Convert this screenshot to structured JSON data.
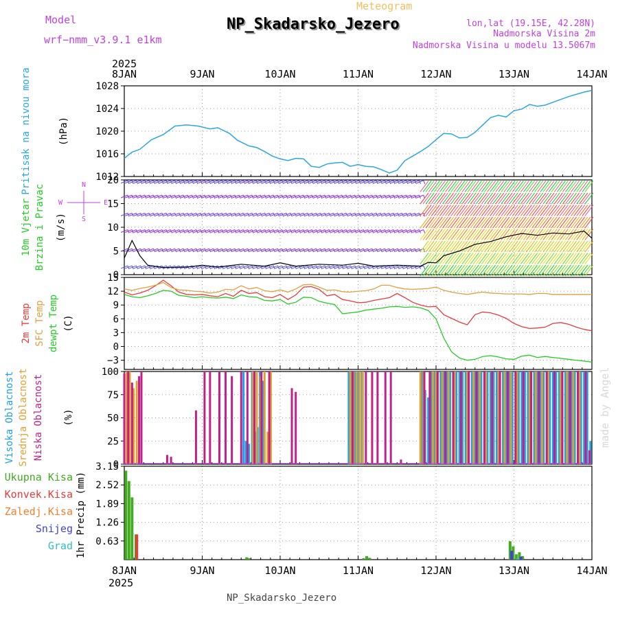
{
  "header": {
    "model_label": "Model",
    "model_name": "wrf−nmm_v3.9.1  e1km",
    "meteogram_label": "Meteogram",
    "station_title": "NP_Skadarsko_Jezero",
    "lonlat": "lon,lat (19.15E, 42.28N)",
    "elevation": "Nadmorska Visina 2m",
    "model_elevation": "Nadmorska Visina u modelu 13.5067m",
    "footer_station": "NP_Skadarsko_Jezero",
    "watermark": "made by Angel"
  },
  "time_axis": {
    "year": "2025",
    "ticks": [
      "8JAN",
      "9JAN",
      "10JAN",
      "11JAN",
      "12JAN",
      "13JAN",
      "14JAN"
    ]
  },
  "colors": {
    "pressure": "#2aa6e0",
    "t2m": "#e83a3a",
    "tsfc": "#e0a040",
    "dewpoint": "#22cc22",
    "wind_speed": "#000000",
    "cloud_high": "#20a0e8",
    "cloud_mid": "#e0a030",
    "cloud_low": "#c0208a",
    "precip_total": "#44aa22",
    "precip_conv": "#e83a3a",
    "precip_frozen": "#f08030",
    "precip_snow": "#4040e0",
    "precip_hail": "#30c0c0",
    "labels_purple": "#c040e0"
  },
  "chart_data": [
    {
      "type": "line",
      "panel": "pressure",
      "ylabel": "Pritisak na nivou mora",
      "unit": "(hPa)",
      "ylim": [
        1012,
        1028
      ],
      "yticks": [
        1012,
        1016,
        1020,
        1024,
        1028
      ],
      "x_days": [
        0,
        0.1,
        0.2,
        0.35,
        0.5,
        0.65,
        0.8,
        0.95,
        1.1,
        1.2,
        1.35,
        1.45,
        1.6,
        1.7,
        1.8,
        1.9,
        2.0,
        2.1,
        2.2,
        2.3,
        2.4,
        2.5,
        2.6,
        2.7,
        2.8,
        2.9,
        3.0,
        3.1,
        3.2,
        3.3,
        3.4,
        3.5,
        3.6,
        3.7,
        3.8,
        3.9,
        4.0,
        4.1,
        4.2,
        4.3,
        4.4,
        4.5,
        4.6,
        4.7,
        4.8,
        4.9,
        5.0,
        5.1,
        5.2,
        5.3,
        5.4,
        5.5,
        5.6,
        5.7,
        5.8,
        5.9,
        6.0
      ],
      "values": [
        1015.2,
        1016.3,
        1016.8,
        1018.5,
        1019.4,
        1020.9,
        1021.1,
        1020.9,
        1020.4,
        1020.6,
        1019.6,
        1018.4,
        1017.4,
        1017.1,
        1016.4,
        1015.6,
        1015.1,
        1014.8,
        1015.2,
        1015.1,
        1013.8,
        1013.6,
        1014.2,
        1014.4,
        1014.5,
        1013.8,
        1014.1,
        1013.8,
        1013.7,
        1013.2,
        1012.6,
        1013.1,
        1014.8,
        1015.6,
        1016.4,
        1017.3,
        1018.5,
        1019.6,
        1019.5,
        1018.8,
        1018.9,
        1019.8,
        1021.1,
        1022.4,
        1022.8,
        1022.5,
        1023.6,
        1023.9,
        1024.7,
        1024.4,
        1024.6,
        1025.1,
        1025.6,
        1026.1,
        1026.5,
        1026.9,
        1027.2
      ]
    },
    {
      "type": "line",
      "panel": "wind",
      "ylabel": "10m Vjetar",
      "ylabel2": "Brzina i Pravac",
      "unit": "(m/s)",
      "ylim": [
        0,
        20
      ],
      "yticks": [
        0,
        5,
        10,
        15,
        20
      ],
      "compass": {
        "n": "N",
        "s": "S",
        "e": "E",
        "w": "W"
      },
      "x_days": [
        0,
        0.1,
        0.2,
        0.3,
        0.5,
        0.8,
        1.0,
        1.2,
        1.5,
        1.8,
        2.0,
        2.2,
        2.5,
        2.8,
        3.0,
        3.2,
        3.5,
        3.8,
        3.9,
        4.0,
        4.1,
        4.3,
        4.5,
        4.7,
        4.9,
        5.1,
        5.3,
        5.5,
        5.7,
        5.9,
        6.0
      ],
      "values": [
        3.5,
        7.2,
        4.0,
        2.0,
        1.5,
        1.6,
        2.0,
        1.6,
        2.2,
        1.8,
        2.5,
        1.8,
        2.2,
        2.0,
        2.4,
        1.8,
        2.0,
        1.8,
        2.6,
        2.5,
        4.0,
        5.0,
        6.4,
        7.0,
        8.0,
        8.7,
        8.3,
        8.8,
        8.6,
        9.2,
        7.7
      ]
    },
    {
      "type": "line",
      "panel": "temperature",
      "ylabels": [
        "2m Temp",
        "SFC Temp",
        "dewpt Temp"
      ],
      "unit": "(C)",
      "ylim": [
        -5,
        15
      ],
      "yticks": [
        -3,
        0,
        3,
        6,
        9,
        12,
        15
      ],
      "x_days": [
        0,
        0.1,
        0.2,
        0.3,
        0.4,
        0.5,
        0.6,
        0.7,
        0.8,
        0.9,
        1.0,
        1.1,
        1.2,
        1.3,
        1.4,
        1.5,
        1.6,
        1.7,
        1.8,
        1.9,
        2.0,
        2.1,
        2.2,
        2.3,
        2.4,
        2.5,
        2.6,
        2.7,
        2.8,
        2.9,
        3.0,
        3.1,
        3.2,
        3.3,
        3.4,
        3.5,
        3.6,
        3.7,
        3.8,
        3.9,
        4.0,
        4.1,
        4.2,
        4.3,
        4.4,
        4.5,
        4.6,
        4.7,
        4.8,
        4.9,
        5.0,
        5.1,
        5.2,
        5.3,
        5.4,
        5.5,
        5.6,
        5.7,
        5.8,
        5.9,
        6.0
      ],
      "series": [
        {
          "name": "2m Temp",
          "key": "t2m",
          "values": [
            11.8,
            11.2,
            11.6,
            12.2,
            13.2,
            14.4,
            13.2,
            11.8,
            11.3,
            11.2,
            11.3,
            11.0,
            10.8,
            11.5,
            10.9,
            12.2,
            11.5,
            11.7,
            10.8,
            10.6,
            11.3,
            10.2,
            11.2,
            12.9,
            13.0,
            12.4,
            11.0,
            11.3,
            10.2,
            9.9,
            9.5,
            9.6,
            10.0,
            10.3,
            10.6,
            11.5,
            10.6,
            9.6,
            9.0,
            8.6,
            8.7,
            6.9,
            6.1,
            5.3,
            4.7,
            6.9,
            7.5,
            7.3,
            6.8,
            6.1,
            5.0,
            4.3,
            3.9,
            4.0,
            4.2,
            5.0,
            5.2,
            4.8,
            4.2,
            3.7,
            3.4
          ]
        },
        {
          "name": "SFC Temp",
          "key": "tsfc",
          "values": [
            12.5,
            12.2,
            12.6,
            12.9,
            13.3,
            13.9,
            12.8,
            12.3,
            12.2,
            12.0,
            11.9,
            11.6,
            11.8,
            12.4,
            12.3,
            13.2,
            12.5,
            12.8,
            12.1,
            11.9,
            12.3,
            11.8,
            12.5,
            13.4,
            13.5,
            12.9,
            12.2,
            12.3,
            11.9,
            11.8,
            12.0,
            12.1,
            12.5,
            13.3,
            13.3,
            12.8,
            12.5,
            12.4,
            12.5,
            12.6,
            12.9,
            12.2,
            11.8,
            11.5,
            11.3,
            11.6,
            11.8,
            11.6,
            11.5,
            11.4,
            11.4,
            11.4,
            11.3,
            11.5,
            11.5,
            11.3,
            11.3,
            11.3,
            11.3,
            11.3,
            11.3
          ]
        },
        {
          "name": "dewpt Temp",
          "key": "dewpoint",
          "values": [
            11.3,
            10.8,
            10.6,
            11.0,
            11.5,
            12.2,
            12.0,
            11.1,
            10.9,
            10.6,
            10.8,
            10.6,
            10.5,
            10.7,
            10.4,
            11.2,
            10.8,
            10.7,
            10.0,
            9.9,
            10.2,
            9.2,
            9.6,
            10.7,
            10.6,
            9.8,
            9.4,
            9.1,
            7.1,
            7.3,
            7.5,
            7.9,
            8.1,
            8.3,
            8.6,
            8.7,
            8.5,
            8.6,
            8.4,
            7.8,
            6.0,
            1.8,
            -1.2,
            -2.5,
            -3.0,
            -2.8,
            -2.2,
            -2.0,
            -2.3,
            -2.7,
            -2.8,
            -2.1,
            -1.9,
            -2.4,
            -2.2,
            -2.4,
            -2.6,
            -2.8,
            -3.0,
            -3.2,
            -3.4
          ]
        }
      ]
    },
    {
      "type": "bar",
      "panel": "clouds",
      "ylabels": [
        "Visoka Oblacnost",
        "Srednja Oblacnost",
        "Niska Oblacnost"
      ],
      "unit": "(%)",
      "ylim": [
        0,
        100
      ],
      "yticks": [
        0,
        25,
        50,
        75,
        100
      ],
      "series": [
        {
          "name": "Visoka Oblacnost",
          "key": "cloud_high",
          "x_days": [
            1.53,
            1.56,
            1.6,
            1.64,
            1.68,
            1.71,
            1.74,
            1.78,
            2.88,
            2.92,
            2.96,
            3.0,
            3.05,
            3.82,
            3.86,
            3.9,
            3.94,
            3.98,
            4.02,
            4.06,
            4.1,
            4.14,
            4.18,
            4.22,
            4.26,
            4.3,
            4.34,
            4.38,
            4.42,
            4.46,
            4.5,
            4.54,
            4.58,
            4.62,
            4.66,
            4.7,
            4.74,
            4.78,
            4.82,
            4.86,
            4.9,
            4.94,
            4.98,
            5.02,
            5.06,
            5.1,
            5.14,
            5.18,
            5.22,
            5.26,
            5.3,
            5.34,
            5.38,
            5.42,
            5.46,
            5.5,
            5.54,
            5.58,
            5.62,
            5.66,
            5.7,
            5.74,
            5.78,
            5.82,
            5.86,
            5.9,
            5.94,
            5.98
          ],
          "values": [
            100,
            25,
            22,
            100,
            35,
            40,
            100,
            90,
            100,
            100,
            100,
            100,
            100,
            100,
            80,
            72,
            100,
            100,
            100,
            100,
            100,
            100,
            100,
            100,
            100,
            100,
            100,
            100,
            100,
            100,
            100,
            100,
            100,
            100,
            100,
            100,
            100,
            100,
            100,
            100,
            100,
            100,
            100,
            100,
            100,
            100,
            100,
            100,
            100,
            100,
            100,
            100,
            100,
            100,
            100,
            100,
            100,
            100,
            100,
            100,
            100,
            100,
            100,
            100,
            100,
            100,
            100,
            25
          ]
        },
        {
          "name": "Srednja Oblacnost",
          "key": "cloud_mid",
          "x_days": [
            0.03,
            0.07,
            0.12,
            0.16,
            1.65,
            1.7,
            1.75,
            1.8,
            1.84,
            1.88,
            2.9,
            2.94,
            2.98,
            3.02,
            3.06,
            3.8,
            3.84,
            3.92,
            3.96,
            4.0,
            4.08,
            4.16,
            4.24,
            4.32,
            4.4,
            4.48,
            4.56,
            4.64,
            4.72,
            4.8,
            4.88,
            4.96,
            5.04,
            5.12,
            5.2,
            5.28,
            5.36,
            5.44,
            5.52,
            5.6,
            5.68,
            5.76,
            5.84,
            5.92
          ],
          "values": [
            100,
            100,
            82,
            90,
            100,
            100,
            95,
            100,
            35,
            100,
            100,
            100,
            100,
            100,
            100,
            100,
            100,
            100,
            100,
            100,
            100,
            100,
            100,
            100,
            100,
            100,
            100,
            100,
            100,
            100,
            100,
            100,
            100,
            100,
            100,
            100,
            100,
            100,
            100,
            100,
            100,
            100,
            100,
            100
          ]
        },
        {
          "name": "Niska Oblacnost",
          "key": "cloud_low",
          "x_days": [
            0.0,
            0.05,
            0.1,
            0.19,
            0.22,
            0.55,
            0.6,
            0.92,
            1.03,
            1.1,
            1.22,
            1.3,
            1.38,
            1.5,
            1.58,
            1.67,
            1.76,
            1.86,
            2.15,
            2.2,
            2.93,
            3.1,
            3.18,
            3.25,
            3.35,
            3.42,
            3.55,
            3.85,
            3.92,
            4.02,
            4.12,
            4.22,
            4.32,
            4.42,
            4.52,
            4.62,
            4.72,
            4.82,
            4.92,
            5.02,
            5.12,
            5.22,
            5.32,
            5.42,
            5.52,
            5.62,
            5.72,
            5.82,
            5.92,
            5.97
          ],
          "values": [
            98,
            100,
            88,
            95,
            100,
            10,
            8,
            58,
            100,
            100,
            100,
            100,
            95,
            100,
            100,
            100,
            100,
            100,
            82,
            78,
            100,
            100,
            100,
            100,
            100,
            100,
            5,
            100,
            100,
            100,
            100,
            100,
            100,
            100,
            100,
            100,
            100,
            100,
            100,
            100,
            100,
            100,
            100,
            100,
            100,
            100,
            100,
            100,
            100,
            15
          ]
        }
      ]
    },
    {
      "type": "bar",
      "panel": "precip",
      "ylabels": [
        "Ukupna Kisa",
        "Konvek.Kisa",
        "Zaledj.Kisa",
        "Snijeg",
        "Grad"
      ],
      "ylabel": "1hr Precip",
      "unit": "(mm)",
      "ylim": [
        0,
        3.15
      ],
      "yticks": [
        0.63,
        1.26,
        1.89,
        2.52,
        3.15
      ],
      "series": [
        {
          "name": "Ukupna Kisa",
          "key": "precip_total",
          "x_days": [
            0.02,
            0.06,
            0.1,
            0.15,
            1.57,
            1.6,
            3.07,
            3.11,
            3.15,
            4.95,
            4.99,
            5.03,
            5.07,
            5.11
          ],
          "values": [
            3.0,
            2.65,
            2.1,
            0.85,
            0.08,
            0.05,
            0.05,
            0.12,
            0.06,
            0.62,
            0.45,
            0.18,
            0.25,
            0.12
          ]
        },
        {
          "name": "Konvek.Kisa",
          "key": "precip_conv",
          "x_days": [
            0.16
          ],
          "values": [
            0.85
          ]
        },
        {
          "name": "Snijeg",
          "key": "precip_snow",
          "x_days": [
            4.97,
            5.09
          ],
          "values": [
            0.3,
            0.1
          ]
        },
        {
          "name": "Grad",
          "key": "precip_hail",
          "x_days": [
            5.05
          ],
          "values": [
            0.05
          ]
        }
      ]
    }
  ]
}
